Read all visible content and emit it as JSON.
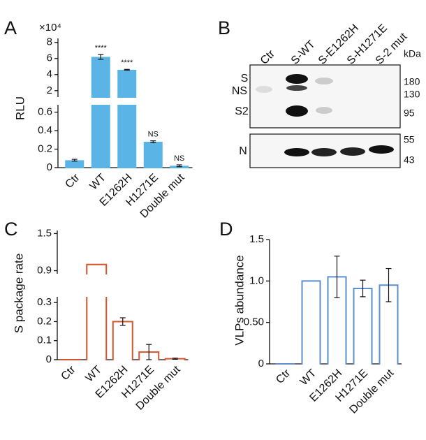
{
  "chart_data": [
    {
      "type": "bar",
      "panel": "A",
      "y_label": "RLU",
      "y_multiplier": "×10⁴",
      "categories": [
        "Ctr",
        "WT",
        "E1262H",
        "H1271E",
        "Double mut"
      ],
      "values": [
        0.08,
        6.2,
        4.6,
        0.28,
        0.02
      ],
      "errors": [
        0.01,
        0.3,
        0.05,
        0.01,
        0.01
      ],
      "value_annotations": [
        null,
        "****",
        "****",
        "NS",
        "NS"
      ],
      "color": "#5ab4e6",
      "bar_style": "filled",
      "axis_break": true,
      "ylim": [
        0,
        0.68
      ],
      "yticks": [
        0,
        0.2,
        0.4,
        0.6
      ],
      "ylim_upper": [
        1.2,
        8.5
      ],
      "yticks_upper": [
        2,
        4,
        6,
        8
      ]
    },
    {
      "type": "bar",
      "panel": "C",
      "y_label": "S package rate",
      "categories": [
        "Ctr",
        "WT",
        "E1262H",
        "H1271E",
        "Double mut"
      ],
      "values": [
        0,
        1.0,
        0.2,
        0.04,
        0.005
      ],
      "errors": [
        0,
        0,
        0.02,
        0.04,
        0.003
      ],
      "color": "#d9542c",
      "bar_style": "outline",
      "axis_break": true,
      "ylim": [
        0,
        0.33
      ],
      "yticks": [
        0,
        0.1,
        0.2,
        0.3
      ],
      "ylim_upper": [
        0.85,
        1.55
      ],
      "yticks_upper": [
        0.9,
        1.5
      ]
    },
    {
      "type": "bar",
      "panel": "D",
      "y_label": "VLPs abundance",
      "categories": [
        "Ctr",
        "WT",
        "E1262H",
        "H1271E",
        "Double mut"
      ],
      "values": [
        0,
        1.0,
        1.05,
        0.91,
        0.95
      ],
      "errors": [
        0,
        0,
        0.25,
        0.1,
        0.2
      ],
      "color": "#5b8fd0",
      "bar_style": "outline",
      "axis_break": false,
      "ylim": [
        0,
        1.5
      ],
      "yticks": [
        0,
        {
          "value": 0.5,
          "label": "0.50"
        },
        {
          "value": 1,
          "label": "1.0"
        },
        1.5
      ]
    }
  ],
  "blot": {
    "panel": "B",
    "lanes": [
      "Ctr",
      "S-WT",
      "S-E1262H",
      "S-H1271E",
      "S-2 mut"
    ],
    "unit": "kDa",
    "band_labels": [
      "S",
      "NS",
      "S2",
      "N"
    ],
    "markers": [
      "180",
      "130",
      "95",
      "55",
      "43"
    ]
  }
}
